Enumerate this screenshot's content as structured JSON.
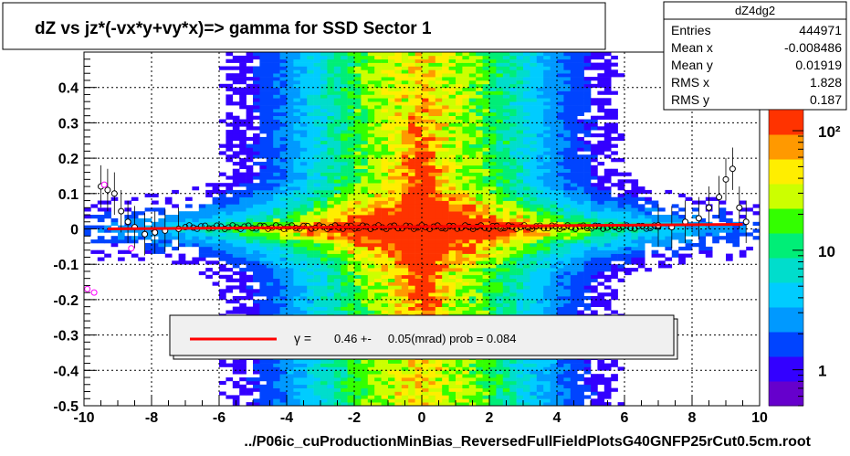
{
  "title": "dZ vs     jz*(-vx*y+vy*x)=> gamma for SSD Sector 1",
  "footer": "../P06ic_cuProductionMinBias_ReversedFullFieldPlotsG40GNFP25rCut0.5cm.root",
  "stats": {
    "name": "dZ4dg2",
    "rows": [
      {
        "label": "Entries",
        "value": "444971"
      },
      {
        "label": "Mean x",
        "value": "-0.008486"
      },
      {
        "label": "Mean y",
        "value": "0.01919"
      },
      {
        "label": "RMS x",
        "value": "1.828"
      },
      {
        "label": "RMS y",
        "value": "0.187"
      }
    ]
  },
  "fit_legend": {
    "symbol": "γ =",
    "text": "0.46 +-     0.05(mrad) prob = 0.084",
    "line_color": "#ff0000"
  },
  "colors": {
    "fit_line": "#ff0000",
    "profile_markers": "#000000",
    "outlier_markers": "#ff00ff",
    "palette": [
      "#6600cc",
      "#3300ff",
      "#0044ff",
      "#0099ff",
      "#00ccff",
      "#00ddcc",
      "#00ee77",
      "#33ff00",
      "#ccff00",
      "#ffee00",
      "#ff9900",
      "#ff3300"
    ]
  },
  "chart_data": {
    "type": "heatmap",
    "xlim": [
      -10,
      10
    ],
    "ylim": [
      -0.5,
      0.5
    ],
    "x_ticks": [
      -10,
      -8,
      -6,
      -4,
      -2,
      0,
      2,
      4,
      6,
      8,
      10
    ],
    "y_ticks": [
      -0.5,
      -0.4,
      -0.3,
      -0.2,
      -0.1,
      0,
      0.1,
      0.2,
      0.3,
      0.4
    ],
    "x_tick_labels": [
      "-10",
      "-8",
      "-6",
      "-4",
      "-2",
      "0",
      "2",
      "4",
      "6",
      "8",
      "10"
    ],
    "y_tick_labels": [
      "-0.5",
      "-0.4",
      "-0.3",
      "-0.2",
      "-0.1",
      "0",
      "0.1",
      "0.2",
      "0.3",
      "0.4"
    ],
    "grid": true,
    "z_scale": "log",
    "z_range": [
      0.5,
      150
    ],
    "z_ticks": [
      1,
      10,
      100
    ],
    "z_tick_labels": [
      "1",
      "10",
      "10²"
    ],
    "fit_line": {
      "x": [
        -9.3,
        9.5
      ],
      "y": [
        0.0,
        0.013
      ]
    },
    "profile": [
      {
        "x": -9.5,
        "y": 0.12
      },
      {
        "x": -9.3,
        "y": 0.11
      },
      {
        "x": -9.1,
        "y": 0.1
      },
      {
        "x": -8.9,
        "y": 0.05
      },
      {
        "x": -8.7,
        "y": 0.02
      },
      {
        "x": -8.5,
        "y": 0.005
      },
      {
        "x": -8.2,
        "y": -0.015
      },
      {
        "x": -7.9,
        "y": -0.01
      },
      {
        "x": -7.6,
        "y": -0.005
      },
      {
        "x": -7.2,
        "y": 0.0
      },
      {
        "x": 7.0,
        "y": 0.01
      },
      {
        "x": 7.4,
        "y": 0.005
      },
      {
        "x": 7.8,
        "y": 0.02
      },
      {
        "x": 8.2,
        "y": 0.03
      },
      {
        "x": 8.5,
        "y": 0.06
      },
      {
        "x": 8.8,
        "y": 0.09
      },
      {
        "x": 9.0,
        "y": 0.14
      },
      {
        "x": 9.2,
        "y": 0.17
      },
      {
        "x": 9.4,
        "y": 0.06
      },
      {
        "x": 9.6,
        "y": 0.02
      }
    ],
    "outliers": [
      {
        "x": -9.9,
        "y": -0.17
      },
      {
        "x": -9.7,
        "y": -0.18
      },
      {
        "x": -9.4,
        "y": 0.125
      },
      {
        "x": -8.6,
        "y": -0.055
      }
    ]
  }
}
